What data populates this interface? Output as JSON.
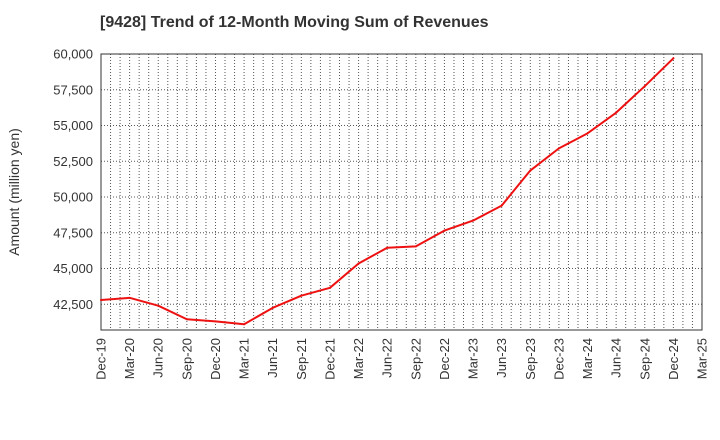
{
  "chart_data": {
    "type": "line",
    "title": "[9428]  Trend of 12-Month Moving Sum of Revenues",
    "xlabel": "",
    "ylabel": "Amount (million yen)",
    "categories": [
      "Dec-19",
      "Mar-20",
      "Jun-20",
      "Sep-20",
      "Dec-20",
      "Mar-21",
      "Jun-21",
      "Sep-21",
      "Dec-21",
      "Mar-22",
      "Jun-22",
      "Sep-22",
      "Dec-22",
      "Mar-23",
      "Jun-23",
      "Sep-23",
      "Dec-23",
      "Mar-24",
      "Jun-24",
      "Sep-24",
      "Dec-24",
      "Mar-25"
    ],
    "series": [
      {
        "color": "#ee1111",
        "values": [
          42800,
          42950,
          42400,
          41450,
          41300,
          41100,
          42250,
          43100,
          43650,
          45350,
          46450,
          46550,
          47650,
          48350,
          49400,
          51850,
          53400,
          54450,
          55900,
          57750,
          59700,
          null
        ]
      }
    ],
    "ylim": [
      40700,
      60000
    ],
    "yticks": [
      42500,
      45000,
      47500,
      50000,
      52500,
      55000,
      57500,
      60000
    ],
    "ytick_labels": [
      "42,500",
      "45,000",
      "47,500",
      "50,000",
      "52,500",
      "55,000",
      "57,500",
      "60,000"
    ],
    "grid": true,
    "grid_style": "dotted",
    "legend": "none"
  }
}
